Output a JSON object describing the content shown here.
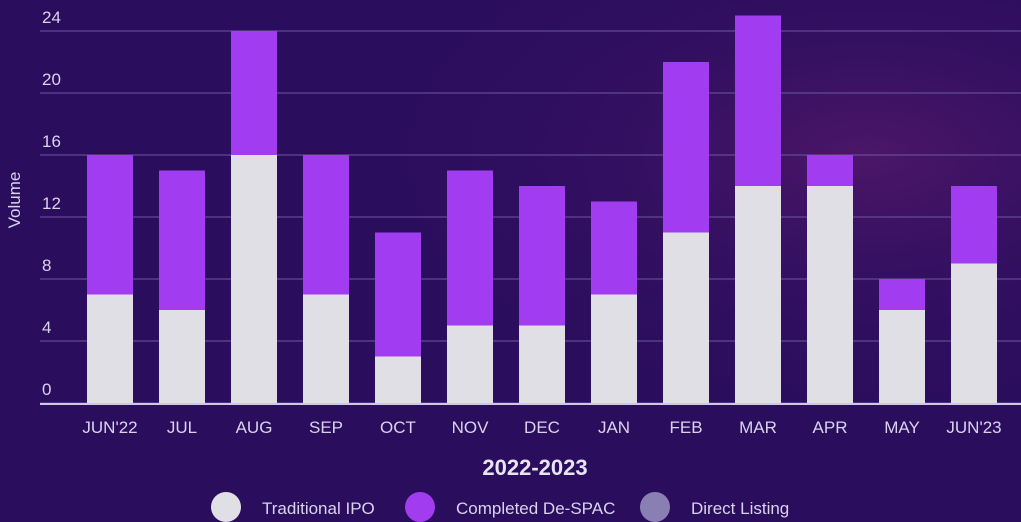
{
  "chart_data": {
    "type": "stacked_bar",
    "xlabel": "2022-2023",
    "ylabel": "Volume",
    "categories": [
      "JUN'22",
      "JUL",
      "AUG",
      "SEP",
      "OCT",
      "NOV",
      "DEC",
      "JAN",
      "FEB",
      "MAR",
      "APR",
      "MAY",
      "JUN'23"
    ],
    "series": [
      {
        "name": "Traditional IPO",
        "color": "#e1dfe6",
        "values": [
          7,
          6,
          16,
          7,
          3,
          5,
          5,
          7,
          11,
          14,
          14,
          6,
          9
        ]
      },
      {
        "name": "Completed De-SPAC",
        "color": "#a13cf0",
        "values": [
          9,
          9,
          8,
          9,
          8,
          10,
          9,
          6,
          11,
          11,
          2,
          2,
          5
        ]
      },
      {
        "name": "Direct Listing",
        "color": "#8a7fb2",
        "values": [
          0,
          0,
          0,
          0,
          0,
          0,
          0,
          0,
          0,
          0,
          0,
          0,
          0
        ]
      }
    ],
    "ylim": [
      0,
      24
    ],
    "yticks": [
      0,
      4,
      8,
      12,
      16,
      20,
      24
    ],
    "grid": true
  }
}
